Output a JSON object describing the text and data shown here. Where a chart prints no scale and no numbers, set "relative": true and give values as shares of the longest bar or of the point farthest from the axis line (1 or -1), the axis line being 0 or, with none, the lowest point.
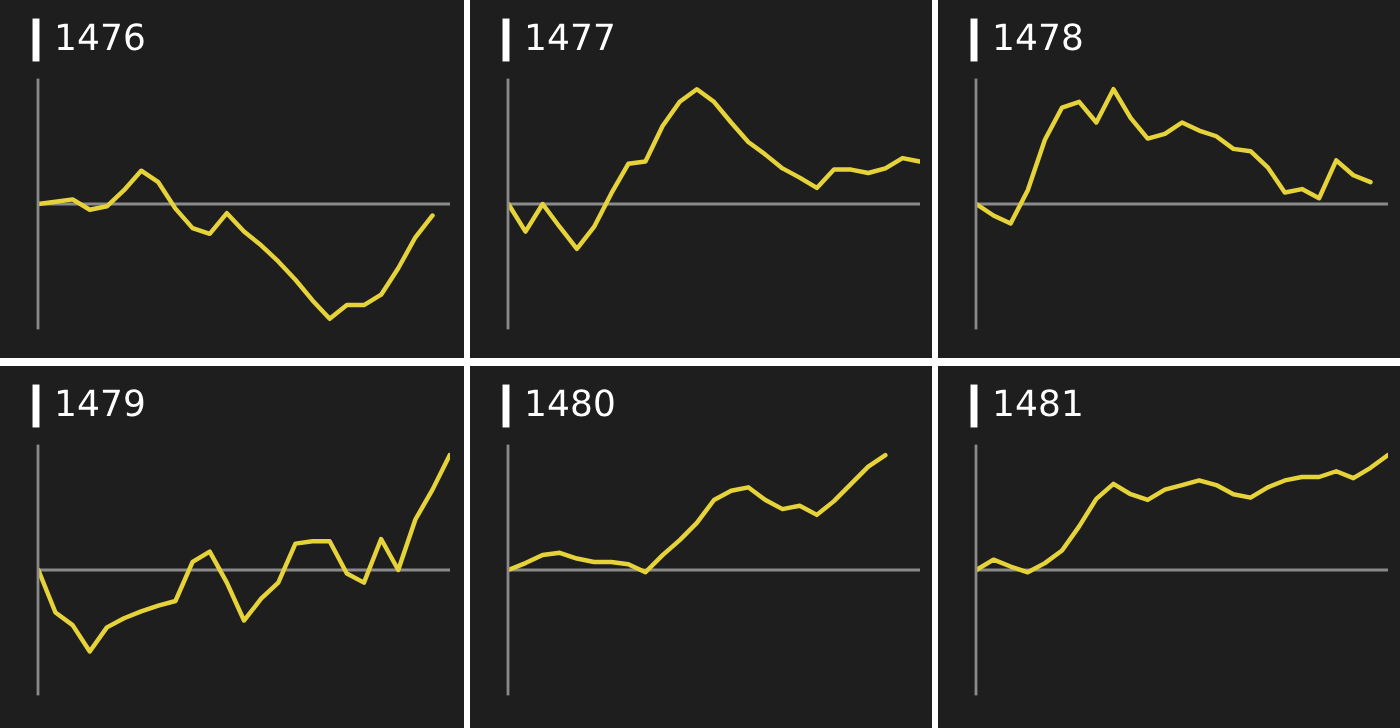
{
  "chart_data": [
    {
      "type": "line",
      "title": "1476",
      "relative": true,
      "categories": [
        null,
        null,
        null,
        null,
        null,
        null,
        null,
        null,
        null,
        null,
        null,
        null,
        null,
        null,
        null,
        null,
        null,
        null,
        null,
        null,
        null,
        null,
        null,
        null,
        null
      ],
      "series": [
        {
          "color": "#e6d33a",
          "values": [
            0,
            0.02,
            0.04,
            -0.05,
            -0.02,
            0.12,
            0.29,
            0.19,
            -0.04,
            -0.21,
            -0.26,
            -0.08,
            -0.24,
            -0.36,
            -0.5,
            -0.66,
            -0.84,
            -1,
            -0.88,
            -0.88,
            -0.79,
            -0.56,
            -0.29,
            -0.1,
            null
          ]
        }
      ]
    },
    {
      "type": "line",
      "title": "1477",
      "relative": true,
      "categories": [
        null,
        null,
        null,
        null,
        null,
        null,
        null,
        null,
        null,
        null,
        null,
        null,
        null,
        null,
        null,
        null,
        null,
        null,
        null,
        null,
        null,
        null,
        null,
        null,
        null
      ],
      "series": [
        {
          "color": "#e6d33a",
          "values": [
            0,
            -0.24,
            0,
            -0.2,
            -0.39,
            -0.2,
            0.09,
            0.35,
            0.37,
            0.68,
            0.89,
            1,
            0.89,
            0.71,
            0.54,
            0.43,
            0.31,
            0.23,
            0.14,
            0.3,
            0.3,
            0.27,
            0.31,
            0.4,
            0.37
          ]
        }
      ]
    },
    {
      "type": "line",
      "title": "1478",
      "relative": true,
      "categories": [
        null,
        null,
        null,
        null,
        null,
        null,
        null,
        null,
        null,
        null,
        null,
        null,
        null,
        null,
        null,
        null,
        null,
        null,
        null,
        null,
        null,
        null,
        null,
        null,
        null
      ],
      "series": [
        {
          "color": "#e6d33a",
          "values": [
            0,
            -0.1,
            -0.17,
            0.12,
            0.56,
            0.84,
            0.89,
            0.71,
            1,
            0.75,
            0.57,
            0.61,
            0.71,
            0.64,
            0.59,
            0.48,
            0.46,
            0.32,
            0.1,
            0.13,
            0.05,
            0.38,
            0.25,
            0.19,
            null
          ]
        }
      ]
    },
    {
      "type": "line",
      "title": "1479",
      "relative": true,
      "categories": [
        null,
        null,
        null,
        null,
        null,
        null,
        null,
        null,
        null,
        null,
        null,
        null,
        null,
        null,
        null,
        null,
        null,
        null,
        null,
        null,
        null,
        null,
        null,
        null,
        null
      ],
      "series": [
        {
          "color": "#e6d33a",
          "values": [
            0,
            -0.37,
            -0.48,
            -0.71,
            -0.5,
            -0.42,
            -0.36,
            -0.31,
            -0.27,
            0.07,
            0.16,
            -0.11,
            -0.44,
            -0.25,
            -0.11,
            0.23,
            0.25,
            0.25,
            -0.03,
            -0.11,
            0.27,
            0,
            0.44,
            0.7,
            1
          ]
        }
      ]
    },
    {
      "type": "line",
      "title": "1480",
      "relative": true,
      "categories": [
        null,
        null,
        null,
        null,
        null,
        null,
        null,
        null,
        null,
        null,
        null,
        null,
        null,
        null,
        null,
        null,
        null,
        null,
        null,
        null,
        null,
        null,
        null,
        null,
        null
      ],
      "series": [
        {
          "color": "#e6d33a",
          "values": [
            0,
            0.06,
            0.13,
            0.15,
            0.1,
            0.07,
            0.07,
            0.05,
            -0.02,
            0.13,
            0.26,
            0.41,
            0.61,
            0.69,
            0.72,
            0.61,
            0.53,
            0.56,
            0.48,
            0.6,
            0.75,
            0.9,
            1,
            null,
            null
          ]
        }
      ]
    },
    {
      "type": "line",
      "title": "1481",
      "relative": true,
      "categories": [
        null,
        null,
        null,
        null,
        null,
        null,
        null,
        null,
        null,
        null,
        null,
        null,
        null,
        null,
        null,
        null,
        null,
        null,
        null,
        null,
        null,
        null,
        null,
        null,
        null
      ],
      "series": [
        {
          "color": "#e6d33a",
          "values": [
            0,
            0.09,
            0.03,
            -0.02,
            0.06,
            0.17,
            0.38,
            0.62,
            0.75,
            0.66,
            0.61,
            0.7,
            0.74,
            0.78,
            0.74,
            0.66,
            0.63,
            0.72,
            0.78,
            0.81,
            0.81,
            0.86,
            0.8,
            0.89,
            1
          ]
        }
      ]
    }
  ]
}
